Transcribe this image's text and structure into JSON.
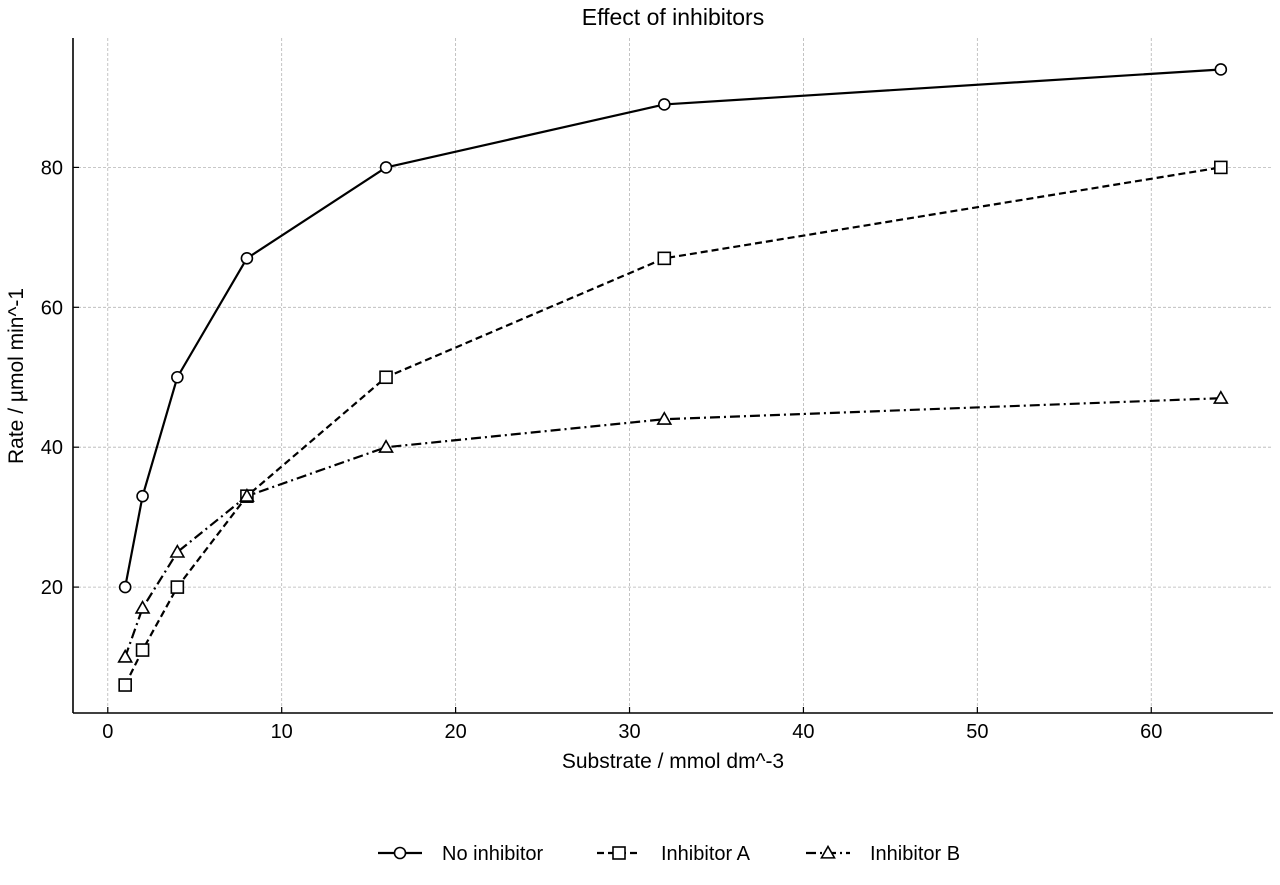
{
  "chart_data": {
    "type": "line",
    "title": "Effect of inhibitors",
    "xlabel": "Substrate / mmol dm^-3",
    "ylabel": "Rate / µmol min^-1",
    "xlim": [
      -2,
      67
    ],
    "ylim": [
      2,
      98.5
    ],
    "xticks": [
      0,
      10,
      20,
      30,
      40,
      50,
      60
    ],
    "yticks": [
      20,
      40,
      60,
      80
    ],
    "grid": true,
    "legend_position": "bottom-center",
    "x": [
      1,
      2,
      4,
      8,
      16,
      32,
      64
    ],
    "series": [
      {
        "name": "No inhibitor",
        "marker": "circle",
        "dash": "solid",
        "values": [
          20,
          33,
          50,
          67,
          80,
          89,
          94
        ]
      },
      {
        "name": "Inhibitor A",
        "marker": "square",
        "dash": "dashed",
        "values": [
          6,
          11,
          20,
          33,
          50,
          67,
          80
        ]
      },
      {
        "name": "Inhibitor B",
        "marker": "triangle",
        "dash": "dashdot",
        "values": [
          10,
          17,
          25,
          33,
          40,
          44,
          47
        ]
      }
    ]
  }
}
